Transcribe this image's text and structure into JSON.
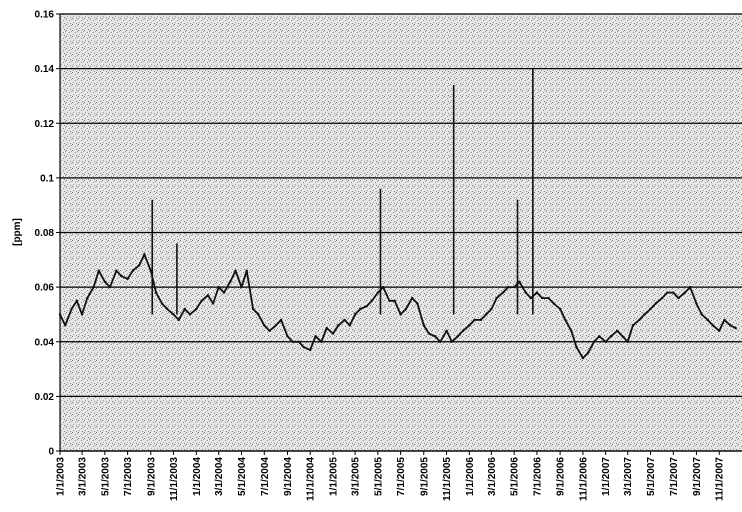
{
  "chart_data": {
    "type": "line",
    "title": "",
    "xlabel": "",
    "ylabel": "[ppm]",
    "ylim": [
      0,
      0.16
    ],
    "y_ticks": [
      "0",
      "0.02",
      "0.04",
      "0.06",
      "0.08",
      "0.1",
      "0.12",
      "0.14",
      "0.16"
    ],
    "x_ticks": [
      "1/1/2003",
      "3/1/2003",
      "5/1/2003",
      "7/1/2003",
      "9/1/2003",
      "11/1/2003",
      "1/1/2004",
      "3/1/2004",
      "5/1/2004",
      "7/1/2004",
      "9/1/2004",
      "11/1/2004",
      "1/1/2005",
      "3/1/2005",
      "5/1/2005",
      "7/1/2005",
      "9/1/2005",
      "11/1/2005",
      "1/1/2006",
      "3/1/2006",
      "5/1/2006",
      "7/1/2006",
      "9/1/2006",
      "11/1/2006",
      "1/1/2007",
      "3/1/2007",
      "5/1/2007",
      "7/1/2007",
      "9/1/2007",
      "11/1/2007"
    ],
    "grid": true,
    "series": [
      {
        "x": [
          "1/1/2003",
          "1/15/2003",
          "2/1/2003",
          "2/15/2003",
          "3/1/2003",
          "3/15/2003",
          "4/1/2003",
          "4/15/2003",
          "5/1/2003",
          "5/15/2003",
          "6/1/2003",
          "6/15/2003",
          "7/1/2003",
          "7/15/2003",
          "8/1/2003",
          "8/15/2003",
          "9/1/2003",
          "9/15/2003",
          "10/1/2003",
          "10/15/2003",
          "11/1/2003",
          "11/15/2003",
          "12/1/2003",
          "12/15/2003",
          "1/1/2004",
          "1/15/2004",
          "2/1/2004",
          "2/15/2004",
          "3/1/2004",
          "3/15/2004",
          "4/1/2004",
          "4/15/2004",
          "5/1/2004",
          "5/15/2004",
          "6/1/2004",
          "6/15/2004",
          "7/1/2004",
          "7/15/2004",
          "8/1/2004",
          "8/15/2004",
          "9/1/2004",
          "9/15/2004",
          "10/1/2004",
          "10/15/2004",
          "11/1/2004",
          "11/15/2004",
          "12/1/2004",
          "12/15/2004",
          "1/1/2005",
          "1/15/2005",
          "2/1/2005",
          "2/15/2005",
          "3/1/2005",
          "3/15/2005",
          "4/1/2005",
          "4/15/2005",
          "5/1/2005",
          "5/15/2005",
          "6/1/2005",
          "6/15/2005",
          "7/1/2005",
          "7/15/2005",
          "8/1/2005",
          "8/15/2005",
          "9/1/2005",
          "9/15/2005",
          "10/1/2005",
          "10/15/2005",
          "11/1/2005",
          "11/15/2005",
          "12/1/2005",
          "12/15/2005",
          "1/1/2006",
          "1/15/2006",
          "2/1/2006",
          "2/15/2006",
          "3/1/2006",
          "3/15/2006",
          "4/1/2006",
          "4/15/2006",
          "5/1/2006",
          "5/15/2006",
          "6/1/2006",
          "6/15/2006",
          "7/1/2006",
          "7/15/2006",
          "8/1/2006",
          "8/15/2006",
          "9/1/2006",
          "9/15/2006",
          "10/1/2006",
          "10/15/2006",
          "11/1/2006",
          "11/15/2006",
          "12/1/2006",
          "12/15/2006",
          "1/1/2007",
          "1/15/2007",
          "2/1/2007",
          "2/15/2007",
          "3/1/2007",
          "3/15/2007",
          "4/1/2007",
          "4/15/2007",
          "5/1/2007",
          "5/15/2007",
          "6/1/2007",
          "6/15/2007",
          "7/1/2007",
          "7/15/2007",
          "8/1/2007",
          "8/15/2007",
          "9/1/2007",
          "9/15/2007",
          "10/1/2007",
          "10/15/2007",
          "11/1/2007",
          "11/15/2007",
          "12/1/2007",
          "12/15/2007"
        ],
        "y": [
          0.05,
          0.046,
          0.052,
          0.055,
          0.05,
          0.056,
          0.06,
          0.066,
          0.062,
          0.06,
          0.066,
          0.064,
          0.063,
          0.066,
          0.068,
          0.072,
          0.066,
          0.058,
          0.054,
          0.052,
          0.05,
          0.048,
          0.052,
          0.05,
          0.052,
          0.055,
          0.057,
          0.054,
          0.06,
          0.058,
          0.062,
          0.066,
          0.06,
          0.066,
          0.052,
          0.05,
          0.046,
          0.044,
          0.046,
          0.048,
          0.042,
          0.04,
          0.04,
          0.038,
          0.037,
          0.042,
          0.04,
          0.045,
          0.043,
          0.046,
          0.048,
          0.046,
          0.05,
          0.052,
          0.053,
          0.055,
          0.058,
          0.06,
          0.055,
          0.055,
          0.05,
          0.052,
          0.056,
          0.054,
          0.046,
          0.043,
          0.042,
          0.04,
          0.044,
          0.04,
          0.042,
          0.044,
          0.046,
          0.048,
          0.048,
          0.05,
          0.052,
          0.056,
          0.058,
          0.06,
          0.06,
          0.062,
          0.058,
          0.056,
          0.058,
          0.056,
          0.056,
          0.054,
          0.052,
          0.048,
          0.044,
          0.038,
          0.034,
          0.036,
          0.04,
          0.042,
          0.04,
          0.042,
          0.044,
          0.042,
          0.04,
          0.046,
          0.048,
          0.05,
          0.052,
          0.054,
          0.056,
          0.058,
          0.058,
          0.056,
          0.058,
          0.06,
          0.054,
          0.05,
          0.048,
          0.046,
          0.044,
          0.048,
          0.046,
          0.045
        ]
      }
    ],
    "spikes": [
      {
        "x": "9/5/2003",
        "y": 0.092
      },
      {
        "x": "11/10/2003",
        "y": 0.076
      },
      {
        "x": "5/8/2005",
        "y": 0.096
      },
      {
        "x": "11/20/2005",
        "y": 0.134
      },
      {
        "x": "5/10/2006",
        "y": 0.092
      },
      {
        "x": "6/20/2006",
        "y": 0.14
      }
    ],
    "colors": {
      "line": "#111111",
      "grid": "#000000",
      "background": "#e4e4e4"
    }
  }
}
